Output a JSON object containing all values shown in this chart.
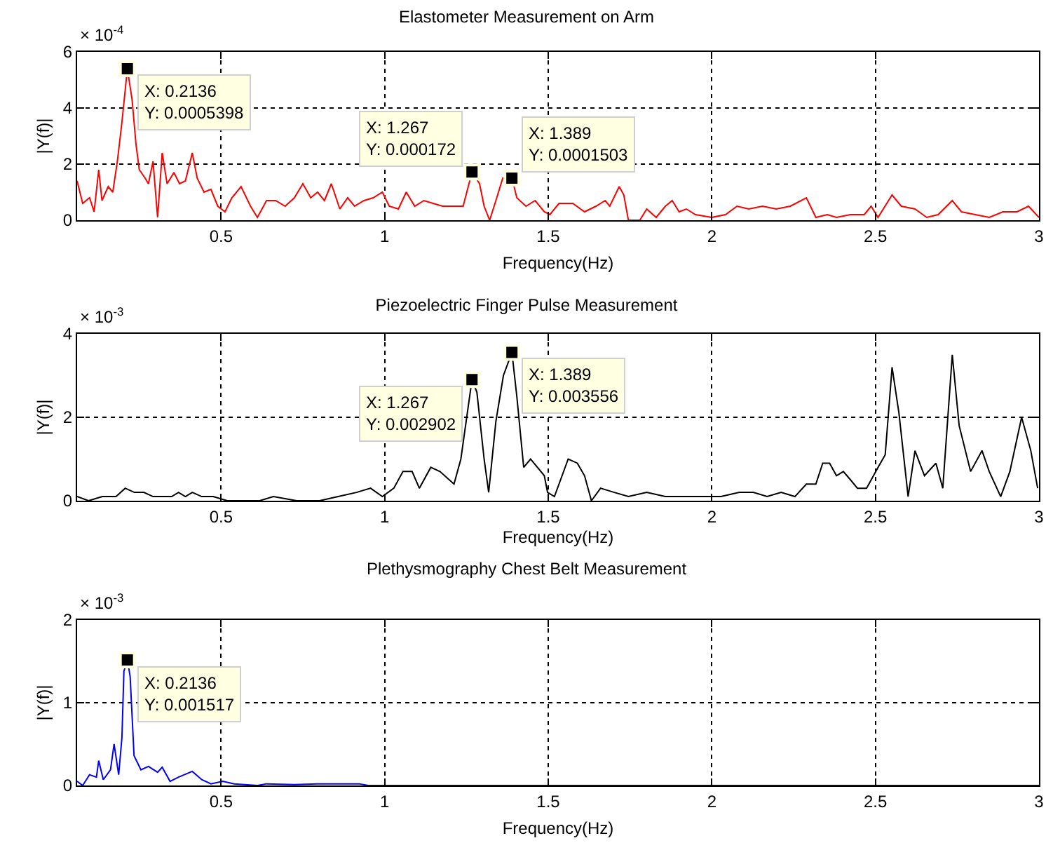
{
  "chart_data": [
    {
      "type": "line",
      "title": "Elastometer Measurement on Arm",
      "xlabel": "Frequency(Hz)",
      "ylabel": "|Y(f)|",
      "color": "#ff0000",
      "grid": true,
      "xlim": [
        0.06,
        3
      ],
      "xticks": [
        0.5,
        1,
        1.5,
        2,
        2.5,
        3
      ],
      "ylim": [
        0,
        6
      ],
      "yticks": [
        0,
        2,
        4,
        6
      ],
      "x": [
        0.06,
        0.077,
        0.098,
        0.112,
        0.126,
        0.136,
        0.155,
        0.169,
        0.183,
        0.197,
        0.2136,
        0.228,
        0.24,
        0.25,
        0.268,
        0.278,
        0.292,
        0.306,
        0.32,
        0.335,
        0.356,
        0.373,
        0.391,
        0.412,
        0.427,
        0.448,
        0.469,
        0.49,
        0.512,
        0.533,
        0.561,
        0.59,
        0.611,
        0.639,
        0.667,
        0.696,
        0.724,
        0.75,
        0.774,
        0.795,
        0.816,
        0.837,
        0.863,
        0.887,
        0.908,
        0.937,
        0.965,
        0.993,
        1.014,
        1.042,
        1.066,
        1.092,
        1.12,
        1.148,
        1.177,
        1.212,
        1.24,
        1.267,
        1.29,
        1.304,
        1.321,
        1.34,
        1.361,
        1.389,
        1.404,
        1.432,
        1.46,
        1.488,
        1.505,
        1.533,
        1.575,
        1.611,
        1.646,
        1.674,
        1.688,
        1.717,
        1.731,
        1.745,
        1.78,
        1.801,
        1.83,
        1.858,
        1.879,
        1.9,
        1.922,
        1.95,
        2.0,
        2.042,
        2.077,
        2.113,
        2.155,
        2.197,
        2.24,
        2.289,
        2.318,
        2.353,
        2.381,
        2.424,
        2.466,
        2.487,
        2.508,
        2.551,
        2.579,
        2.621,
        2.657,
        2.692,
        2.735,
        2.763,
        2.805,
        2.848,
        2.89,
        2.933,
        2.968,
        3.0
      ],
      "values": [
        1.4,
        0.6,
        0.8,
        0.3,
        1.8,
        0.7,
        1.2,
        1.0,
        2.1,
        3.5,
        5.398,
        4.3,
        2.7,
        1.8,
        1.5,
        1.3,
        2.1,
        0.1,
        2.4,
        1.3,
        1.7,
        1.3,
        1.4,
        2.4,
        1.5,
        1.0,
        1.1,
        0.5,
        0.3,
        0.8,
        1.2,
        0.5,
        0.1,
        0.7,
        0.7,
        0.5,
        0.8,
        1.3,
        0.8,
        1.0,
        0.7,
        1.3,
        0.4,
        0.8,
        0.5,
        0.7,
        0.8,
        1.0,
        0.5,
        0.4,
        1.0,
        0.5,
        0.7,
        0.6,
        0.5,
        0.5,
        0.5,
        1.72,
        1.3,
        0.5,
        0,
        0.7,
        1.5,
        1.503,
        0.8,
        0.5,
        0.7,
        0.3,
        0.2,
        0.6,
        0.6,
        0.3,
        0.5,
        0.7,
        0.5,
        1.2,
        0.9,
        0,
        0,
        0.4,
        0.1,
        0.5,
        0.7,
        0.3,
        0.4,
        0.2,
        0.1,
        0.2,
        0.5,
        0.4,
        0.5,
        0.4,
        0.5,
        0.8,
        0.1,
        0.2,
        0.1,
        0.2,
        0.2,
        0.5,
        0.1,
        0.9,
        0.5,
        0.4,
        0.1,
        0.2,
        0.7,
        0.3,
        0.2,
        0.1,
        0.3,
        0.3,
        0.5,
        0.1
      ],
      "annotations": [
        "× 10$^{-4}$",
        {
          "text": "X: 0.2136\nY: 0.0005398",
          "x": 0.2136,
          "y": 5.398
        },
        {
          "text": "X: 1.267\nY: 0.000172",
          "x": 1.267,
          "y": 1.72
        },
        {
          "text": "X: 1.389\nY: 0.0001503",
          "x": 1.389,
          "y": 1.503
        }
      ]
    },
    {
      "type": "line",
      "title": "Piezoelectric Finger Pulse Measurement",
      "xlabel": "Frequency(Hz)",
      "ylabel": "|Y(f)|",
      "color": "#000000",
      "grid": true,
      "xlim": [
        0.06,
        3
      ],
      "xticks": [
        0.5,
        1,
        1.5,
        2,
        2.5,
        3
      ],
      "ylim": [
        0,
        4
      ],
      "yticks": [
        0,
        2,
        4
      ],
      "x": [
        0.06,
        0.095,
        0.137,
        0.179,
        0.207,
        0.235,
        0.264,
        0.292,
        0.32,
        0.349,
        0.37,
        0.391,
        0.412,
        0.441,
        0.476,
        0.519,
        0.561,
        0.618,
        0.66,
        0.731,
        0.801,
        0.858,
        0.914,
        0.957,
        0.993,
        1.028,
        1.056,
        1.084,
        1.106,
        1.141,
        1.169,
        1.212,
        1.233,
        1.267,
        1.282,
        1.304,
        1.318,
        1.34,
        1.363,
        1.389,
        1.404,
        1.425,
        1.446,
        1.467,
        1.488,
        1.498,
        1.519,
        1.561,
        1.589,
        1.611,
        1.632,
        1.66,
        1.702,
        1.745,
        1.801,
        1.858,
        1.915,
        1.971,
        2.028,
        2.084,
        2.127,
        2.169,
        2.212,
        2.254,
        2.289,
        2.318,
        2.339,
        2.36,
        2.381,
        2.402,
        2.424,
        2.445,
        2.473,
        2.508,
        2.53,
        2.551,
        2.572,
        2.6,
        2.621,
        2.65,
        2.685,
        2.706,
        2.735,
        2.756,
        2.791,
        2.826,
        2.848,
        2.883,
        2.911,
        2.947,
        2.975,
        2.996
      ],
      "values": [
        0.1,
        0,
        0.1,
        0.1,
        0.3,
        0.2,
        0.2,
        0.1,
        0.1,
        0.1,
        0.2,
        0.1,
        0.2,
        0.1,
        0.1,
        0,
        0,
        0,
        0.1,
        0,
        0,
        0.1,
        0.2,
        0.3,
        0.1,
        0.3,
        0.7,
        0.7,
        0.3,
        0.8,
        0.7,
        0.4,
        1.0,
        2.902,
        2.6,
        1.0,
        0.2,
        1.9,
        3.0,
        3.556,
        2.5,
        0.8,
        1.0,
        0.8,
        0.6,
        0.2,
        0.1,
        1.0,
        0.9,
        0.6,
        0,
        0.3,
        0.2,
        0.1,
        0.2,
        0.1,
        0.1,
        0.1,
        0.1,
        0.2,
        0.2,
        0.1,
        0.2,
        0.1,
        0.4,
        0.4,
        0.9,
        0.9,
        0.6,
        0.7,
        0.5,
        0.3,
        0.3,
        0.8,
        1.1,
        3.2,
        2.1,
        0.1,
        1.2,
        0.6,
        0.9,
        0.3,
        3.5,
        1.8,
        0.7,
        1.2,
        0.7,
        0.1,
        0.7,
        2.0,
        1.2,
        0.3
      ],
      "annotations": [
        "× 10$^{-3}$",
        {
          "text": "X: 1.267\nY: 0.002902",
          "x": 1.267,
          "y": 2.902
        },
        {
          "text": "X: 1.389\nY: 0.003556",
          "x": 1.389,
          "y": 3.556
        }
      ]
    },
    {
      "type": "line",
      "title": "Plethysmography Chest Belt Measurement",
      "xlabel": "Frequency(Hz)",
      "ylabel": "|Y(f)|",
      "color": "#0000ff",
      "grid": true,
      "xlim": [
        0.06,
        3
      ],
      "xticks": [
        0.5,
        1,
        1.5,
        2,
        2.5,
        3
      ],
      "ylim": [
        0,
        2
      ],
      "yticks": [
        0,
        1,
        2
      ],
      "x": [
        0.06,
        0.077,
        0.098,
        0.119,
        0.126,
        0.14,
        0.162,
        0.173,
        0.187,
        0.197,
        0.203,
        0.2136,
        0.222,
        0.234,
        0.255,
        0.278,
        0.306,
        0.32,
        0.344,
        0.37,
        0.412,
        0.441,
        0.469,
        0.505,
        0.54,
        0.611,
        0.639,
        0.724,
        0.795,
        0.865,
        0.922,
        0.95,
        1.5,
        2.0,
        2.5,
        3.0
      ],
      "values": [
        0.05,
        0,
        0.13,
        0.1,
        0.3,
        0.07,
        0.19,
        0.5,
        0.13,
        0.58,
        1.38,
        1.517,
        1.32,
        0.36,
        0.19,
        0.23,
        0.16,
        0.22,
        0.05,
        0.1,
        0.17,
        0.07,
        0.02,
        0.05,
        0.02,
        0,
        0.02,
        0.01,
        0.02,
        0.02,
        0.02,
        0,
        0,
        0,
        0,
        0
      ],
      "annotations": [
        "× 10$^{-3}$",
        {
          "text": "X: 0.2136\nY: 0.001517",
          "x": 0.2136,
          "y": 1.517
        }
      ]
    }
  ]
}
